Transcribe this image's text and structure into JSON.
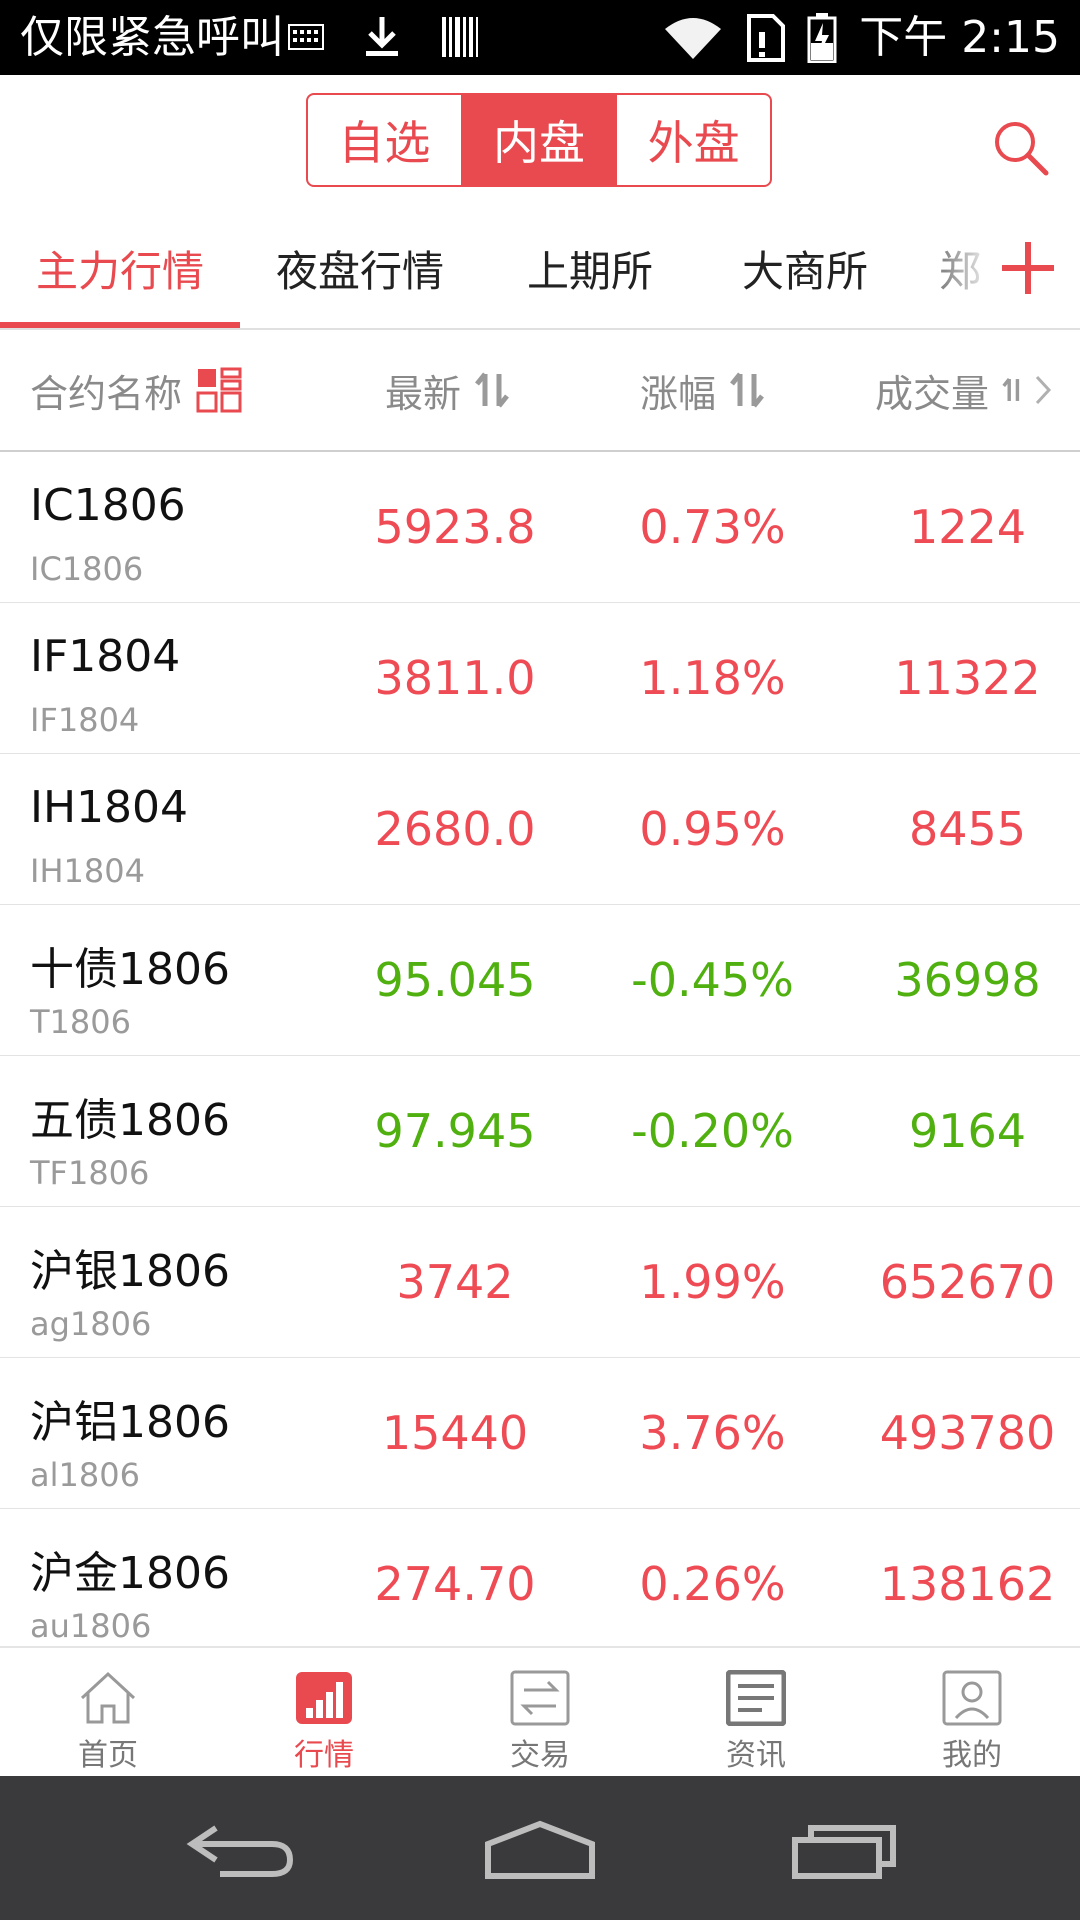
{
  "status_bar": {
    "carrier_text": "仅限紧急呼叫",
    "icons": [
      "keyboard-icon",
      "download-icon",
      "barcode-icon",
      "wifi-icon",
      "sim-icon",
      "battery-icon"
    ],
    "time": "下午 2:15"
  },
  "top_bar": {
    "segments": [
      "自选",
      "内盘",
      "外盘"
    ],
    "active_segment": "内盘",
    "search_icon": "search-icon"
  },
  "category_tabs": {
    "items": [
      "主力行情",
      "夜盘行情",
      "上期所",
      "大商所",
      "郑"
    ],
    "active": "主力行情",
    "add_icon": "plus-icon"
  },
  "table": {
    "columns": {
      "name": "合约名称",
      "last": "最新",
      "change": "涨幅",
      "volume": "成交量"
    },
    "rows": [
      {
        "name": "IC1806",
        "code": "IC1806",
        "last": "5923.8",
        "change": "0.73%",
        "volume": "1224"
      },
      {
        "name": "IF1804",
        "code": "IF1804",
        "last": "3811.0",
        "change": "1.18%",
        "volume": "11322"
      },
      {
        "name": "IH1804",
        "code": "IH1804",
        "last": "2680.0",
        "change": "0.95%",
        "volume": "8455"
      },
      {
        "name": "十债1806",
        "code": "T1806",
        "last": "95.045",
        "change": "-0.45%",
        "volume": "36998"
      },
      {
        "name": "五债1806",
        "code": "TF1806",
        "last": "97.945",
        "change": "-0.20%",
        "volume": "9164"
      },
      {
        "name": "沪银1806",
        "code": "ag1806",
        "last": "3742",
        "change": "1.99%",
        "volume": "652670"
      },
      {
        "name": "沪铝1806",
        "code": "al1806",
        "last": "15440",
        "change": "3.76%",
        "volume": "493780"
      },
      {
        "name": "沪金1806",
        "code": "au1806",
        "last": "274.70",
        "change": "0.26%",
        "volume": "138162"
      }
    ]
  },
  "bottom_nav": {
    "items": [
      {
        "label": "首页",
        "icon": "home-icon"
      },
      {
        "label": "行情",
        "icon": "market-chart-icon"
      },
      {
        "label": "交易",
        "icon": "trade-exchange-icon"
      },
      {
        "label": "资讯",
        "icon": "news-icon"
      },
      {
        "label": "我的",
        "icon": "profile-icon"
      }
    ],
    "active": "行情"
  },
  "colors": {
    "accent": "#e84a4f",
    "up": "#ee4b55",
    "down": "#4fb00f"
  }
}
